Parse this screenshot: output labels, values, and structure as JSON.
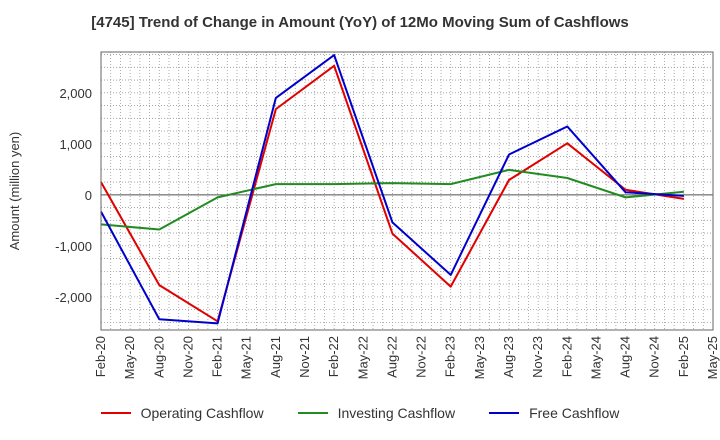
{
  "chart_data": {
    "type": "line",
    "title": "[4745]  Trend of Change in Amount (YoY) of 12Mo Moving Sum of Cashflows",
    "xlabel": "",
    "ylabel": "Amount (million yen)",
    "ylim": [
      -2650,
      2800
    ],
    "yticks": [
      2000,
      1000,
      0,
      -1000,
      -2000
    ],
    "ytick_labels": [
      "2,000",
      "1,000",
      "0",
      "-1,000",
      "-2,000"
    ],
    "grid": true,
    "legend_position": "bottom",
    "categories": [
      "Feb-20",
      "May-20",
      "Aug-20",
      "Nov-20",
      "Feb-21",
      "May-21",
      "Aug-21",
      "Nov-21",
      "Feb-22",
      "May-22",
      "Aug-22",
      "Nov-22",
      "Feb-23",
      "May-23",
      "Aug-23",
      "Nov-23",
      "Feb-24",
      "May-24",
      "Aug-24",
      "Nov-24",
      "Feb-25",
      "May-25"
    ],
    "series": [
      {
        "name": "Operating Cashflow",
        "color": "#e00000",
        "points": [
          [
            0,
            250
          ],
          [
            2,
            -1770
          ],
          [
            4,
            -2480
          ],
          [
            6,
            1680
          ],
          [
            8,
            2530
          ],
          [
            10,
            -760
          ],
          [
            12,
            -1800
          ],
          [
            14,
            290
          ],
          [
            16,
            1010
          ],
          [
            18,
            100
          ],
          [
            20,
            -80
          ]
        ]
      },
      {
        "name": "Investing Cashflow",
        "color": "#228B22",
        "points": [
          [
            0,
            -580
          ],
          [
            2,
            -680
          ],
          [
            4,
            -50
          ],
          [
            6,
            210
          ],
          [
            8,
            210
          ],
          [
            10,
            230
          ],
          [
            12,
            210
          ],
          [
            14,
            490
          ],
          [
            16,
            330
          ],
          [
            18,
            -50
          ],
          [
            20,
            60
          ]
        ]
      },
      {
        "name": "Free Cashflow",
        "color": "#0000cc",
        "points": [
          [
            0,
            -330
          ],
          [
            2,
            -2440
          ],
          [
            4,
            -2520
          ],
          [
            6,
            1900
          ],
          [
            8,
            2740
          ],
          [
            10,
            -540
          ],
          [
            12,
            -1570
          ],
          [
            14,
            790
          ],
          [
            16,
            1340
          ],
          [
            18,
            50
          ],
          [
            20,
            -20
          ]
        ]
      }
    ]
  }
}
